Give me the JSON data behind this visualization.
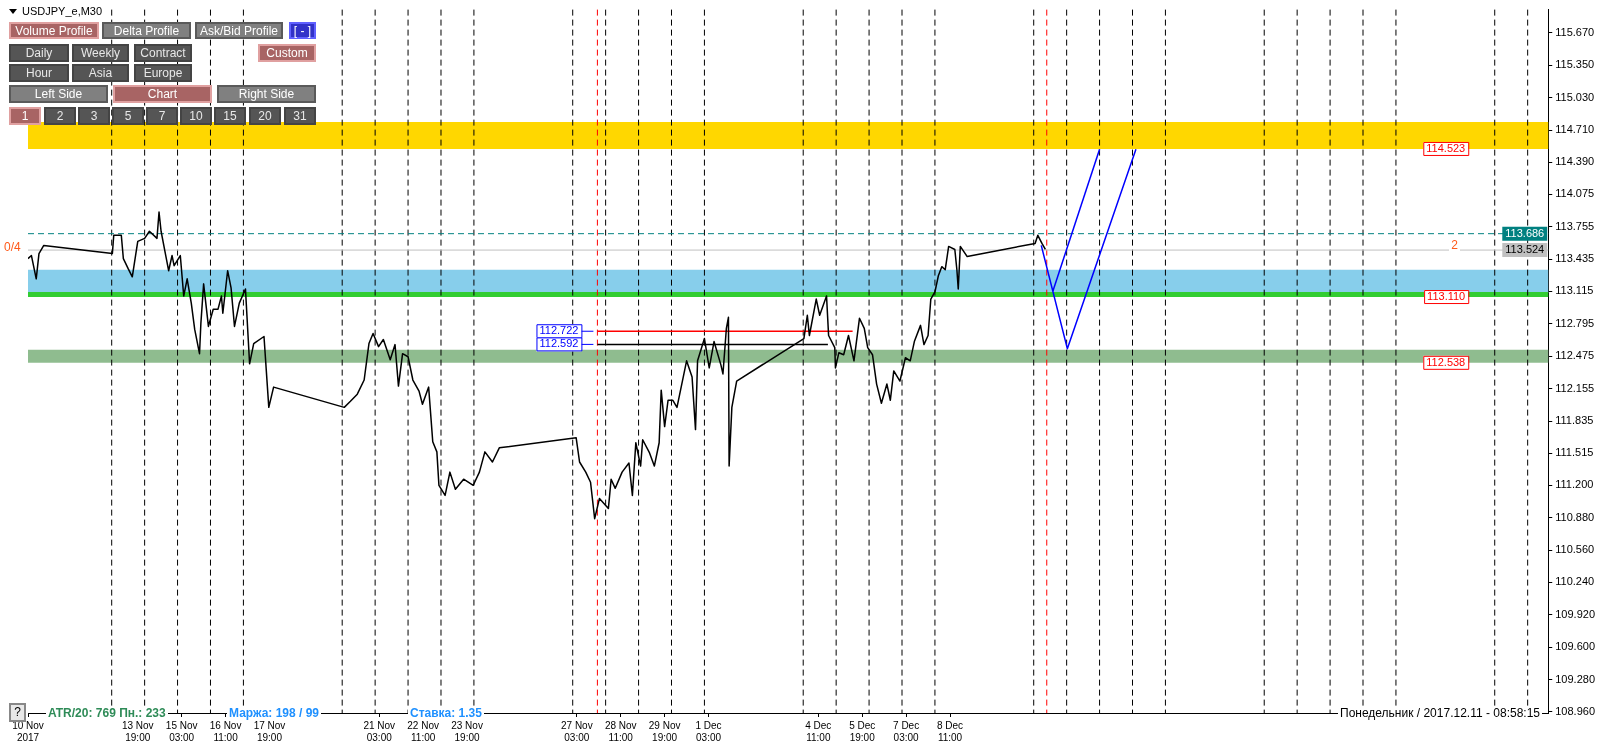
{
  "chart_data": {
    "type": "line",
    "title": "USDJPY_e,M30",
    "x": [
      "2017-11-10T11:00",
      "2017-11-10T13:30",
      "2017-11-10T17:00",
      "2017-11-10T19:00",
      "2017-11-10T22:30",
      "2017-11-13T00:30",
      "2017-11-13T01:30",
      "2017-11-13T07:00",
      "2017-11-13T08:30",
      "2017-11-13T12:00",
      "2017-11-13T15:00",
      "2017-11-13T19:00",
      "2017-11-14T00:00",
      "2017-11-14T03:30",
      "2017-11-14T09:00",
      "2017-11-14T10:30",
      "2017-11-14T12:00",
      "2017-11-14T17:30",
      "2017-11-14T20:00",
      "2017-11-14T21:30",
      "2017-11-15T02:00",
      "2017-11-15T04:30",
      "2017-11-15T07:00",
      "2017-11-15T10:00",
      "2017-11-15T12:30",
      "2017-11-15T16:00",
      "2017-11-15T17:00",
      "2017-11-15T19:00",
      "2017-11-15T22:30",
      "2017-11-16T02:00",
      "2017-11-16T05:30",
      "2017-11-16T08:00",
      "2017-11-16T09:00",
      "2017-11-16T12:30",
      "2017-11-16T15:00",
      "2017-11-16T17:30",
      "2017-11-16T21:00",
      "2017-11-17T01:30",
      "2017-11-17T04:30",
      "2017-11-17T07:30",
      "2017-11-17T15:00",
      "2017-11-17T18:30",
      "2017-11-17T22:00",
      "2017-11-20T01:30",
      "2017-11-20T06:00",
      "2017-11-20T11:00",
      "2017-11-20T16:00",
      "2017-11-20T19:30",
      "2017-11-20T22:30",
      "2017-11-21T02:30",
      "2017-11-21T06:00",
      "2017-11-21T11:00",
      "2017-11-21T14:30",
      "2017-11-21T17:00",
      "2017-11-21T20:00",
      "2017-11-22T00:00",
      "2017-11-22T03:30",
      "2017-11-22T08:00",
      "2017-11-22T10:30",
      "2017-11-22T15:00",
      "2017-11-22T18:00",
      "2017-11-22T21:00",
      "2017-11-22T22:30",
      "2017-11-23T03:00",
      "2017-11-23T06:30",
      "2017-11-23T10:30",
      "2017-11-23T16:30",
      "2017-11-23T23:30",
      "2017-11-24T04:00",
      "2017-11-24T08:00",
      "2017-11-24T13:30",
      "2017-11-24T18:30",
      "2017-11-27T02:30",
      "2017-11-27T05:00",
      "2017-11-27T09:30",
      "2017-11-27T13:00",
      "2017-11-27T16:00",
      "2017-11-27T19:30",
      "2017-11-28T02:00",
      "2017-11-28T04:00",
      "2017-11-28T07:00",
      "2017-11-28T12:00",
      "2017-11-28T17:00",
      "2017-11-28T19:30",
      "2017-11-28T22:00",
      "2017-11-29T01:30",
      "2017-11-29T03:00",
      "2017-11-29T08:00",
      "2017-11-29T11:30",
      "2017-11-29T15:00",
      "2017-11-29T16:30",
      "2017-11-29T19:00",
      "2017-11-29T21:30",
      "2017-11-30T01:00",
      "2017-11-30T04:00",
      "2017-11-30T11:00",
      "2017-11-30T15:00",
      "2017-11-30T17:30",
      "2017-11-30T19:00",
      "2017-12-01T00:00",
      "2017-12-01T03:30",
      "2017-12-01T07:00",
      "2017-12-01T12:00",
      "2017-12-01T13:30",
      "2017-12-01T16:00",
      "2017-12-01T17:30",
      "2017-12-01T18:00",
      "2017-12-01T20:00",
      "2017-12-01T23:30",
      "2017-12-04T00:30",
      "2017-12-04T03:00",
      "2017-12-04T04:30",
      "2017-12-04T09:30",
      "2017-12-04T12:00",
      "2017-12-04T17:00",
      "2017-12-04T18:30",
      "2017-12-04T23:00",
      "2017-12-04T23:30",
      "2017-12-05T02:00",
      "2017-12-05T05:30",
      "2017-12-05T09:00",
      "2017-12-05T13:00",
      "2017-12-05T17:00",
      "2017-12-05T20:30",
      "2017-12-05T23:00",
      "2017-12-06T02:30",
      "2017-12-06T05:30",
      "2017-12-06T09:00",
      "2017-12-06T13:00",
      "2017-12-06T15:30",
      "2017-12-06T18:00",
      "2017-12-06T22:30",
      "2017-12-07T02:30",
      "2017-12-07T06:00",
      "2017-12-07T09:00",
      "2017-12-07T13:30",
      "2017-12-07T16:00",
      "2017-12-07T19:00",
      "2017-12-07T21:00",
      "2017-12-08T00:00",
      "2017-12-08T02:30",
      "2017-12-08T05:00",
      "2017-12-08T07:30",
      "2017-12-08T10:00",
      "2017-12-08T14:30",
      "2017-12-08T16:00",
      "2017-12-08T17:00",
      "2017-12-08T18:30",
      "2017-12-08T23:30",
      "2017-12-11T01:00",
      "2017-12-11T03:00",
      "2017-12-11T06:00",
      "2017-12-11T08:30"
    ],
    "series": [
      {
        "color": "#000000",
        "values": [
          113.44,
          113.47,
          113.24,
          113.49,
          113.57,
          113.49,
          113.67,
          113.67,
          113.44,
          113.34,
          113.26,
          113.61,
          113.64,
          113.71,
          113.64,
          113.9,
          113.71,
          113.32,
          113.47,
          113.37,
          113.47,
          113.07,
          113.24,
          113.0,
          112.74,
          112.5,
          112.8,
          113.19,
          112.77,
          112.94,
          112.94,
          113.07,
          112.9,
          113.32,
          113.15,
          112.77,
          113.0,
          113.14,
          112.4,
          112.6,
          112.67,
          111.97,
          112.17,
          111.97,
          112.03,
          112.1,
          112.24,
          112.6,
          112.7,
          112.57,
          112.64,
          112.44,
          112.59,
          112.18,
          112.5,
          112.47,
          112.24,
          112.13,
          112.0,
          112.17,
          111.63,
          111.53,
          111.2,
          111.1,
          111.33,
          111.16,
          111.26,
          111.2,
          111.33,
          111.53,
          111.43,
          111.57,
          111.67,
          111.43,
          111.33,
          111.23,
          110.87,
          111.07,
          110.97,
          111.26,
          111.17,
          111.33,
          111.42,
          111.1,
          111.62,
          111.39,
          111.65,
          111.52,
          111.39,
          111.62,
          112.14,
          111.78,
          112.04,
          112.04,
          111.97,
          112.43,
          112.27,
          111.75,
          112.43,
          112.65,
          112.36,
          112.62,
          112.39,
          112.3,
          112.75,
          112.86,
          111.39,
          111.97,
          112.23,
          112.65,
          112.88,
          112.68,
          113.04,
          112.88,
          113.07,
          112.68,
          112.56,
          112.36,
          112.51,
          112.49,
          112.68,
          112.43,
          112.85,
          112.75,
          112.56,
          112.49,
          112.2,
          112.01,
          112.2,
          112.04,
          112.33,
          112.23,
          112.46,
          112.43,
          112.62,
          112.78,
          112.59,
          112.68,
          113.04,
          113.11,
          113.27,
          113.36,
          113.33,
          113.56,
          113.53,
          113.33,
          113.14,
          113.56,
          113.46,
          113.59,
          113.67,
          113.59,
          113.53
        ]
      },
      {
        "type": "line",
        "color": "#ff0000",
        "x": [
          "2017-11-27T18:00",
          "2017-12-05T12:00"
        ],
        "values": [
          112.722,
          112.722
        ],
        "value_labels": [
          "112.722",
          null
        ]
      },
      {
        "type": "line",
        "color": "#000000",
        "x": [
          "2017-11-27T18:00",
          "2017-12-04T18:00"
        ],
        "values": [
          112.592,
          112.592
        ],
        "value_labels": [
          "112.592",
          null
        ]
      },
      {
        "type": "line",
        "color": "#0000ff",
        "x": [
          "2017-12-11T05:30",
          "2017-12-12T00:30",
          "2017-12-14T02:30"
        ],
        "values": [
          113.57,
          112.55,
          114.52
        ]
      },
      {
        "type": "line",
        "color": "#0000ff",
        "x": [
          "2017-12-11T14:00",
          "2017-12-13T00:00"
        ],
        "values": [
          113.12,
          114.52
        ]
      }
    ],
    "bands": [
      {
        "axis": "y",
        "from": 114.523,
        "to": 114.79,
        "color": "#ffd700",
        "label": "114.523"
      },
      {
        "axis": "y",
        "from": 113.1,
        "to": 113.33,
        "color": "#87ceeb"
      },
      {
        "axis": "y",
        "from": 113.06,
        "to": 113.11,
        "color": "#32cd32",
        "label": "113.110"
      },
      {
        "axis": "y",
        "from": 112.41,
        "to": 112.538,
        "color": "#8fbc8f",
        "label": "112.538"
      }
    ],
    "xlim": [
      "2017-11-10T11:00",
      "2017-12-26T15:00"
    ],
    "xticks": [
      {
        "value": "2017-11-10T11:00",
        "label": "10 Nov 2017"
      },
      {
        "value": "2017-11-13T19:00",
        "label": "13 Nov 19:00"
      },
      {
        "value": "2017-11-15T03:00",
        "label": "15 Nov 03:00"
      },
      {
        "value": "2017-11-16T11:00",
        "label": "16 Nov 11:00"
      },
      {
        "value": "2017-11-17T19:00",
        "label": "17 Nov 19:00"
      },
      {
        "value": "2017-11-21T03:00",
        "label": "21 Nov 03:00"
      },
      {
        "value": "2017-11-22T11:00",
        "label": "22 Nov 11:00"
      },
      {
        "value": "2017-11-23T19:00",
        "label": "23 Nov 19:00"
      },
      {
        "value": "2017-11-27T03:00",
        "label": "27 Nov 03:00"
      },
      {
        "value": "2017-11-28T11:00",
        "label": "28 Nov 11:00"
      },
      {
        "value": "2017-11-29T19:00",
        "label": "29 Nov 19:00"
      },
      {
        "value": "2017-12-01T03:00",
        "label": "1 Dec 03:00"
      },
      {
        "value": "2017-12-04T11:00",
        "label": "4 Dec 11:00"
      },
      {
        "value": "2017-12-05T19:00",
        "label": "5 Dec 19:00"
      },
      {
        "value": "2017-12-07T03:00",
        "label": "7 Dec 03:00"
      },
      {
        "value": "2017-12-08T11:00",
        "label": "8 Dec 11:00"
      }
    ],
    "ylim": [
      108.95,
      115.9
    ],
    "yticks": [
      {
        "value": 115.67,
        "label": "115.670"
      },
      {
        "value": 115.35,
        "label": "115.350"
      },
      {
        "value": 115.03,
        "label": "115.030"
      },
      {
        "value": 114.71,
        "label": "114.710"
      },
      {
        "value": 114.39,
        "label": "114.390"
      },
      114.075,
      113.755,
      113.435,
      113.115,
      112.795,
      112.475,
      112.155,
      111.835,
      111.515,
      {
        "value": 111.2,
        "label": "111.200"
      },
      {
        "value": 110.88,
        "label": "110.880"
      },
      {
        "value": 110.56,
        "label": "110.560"
      },
      {
        "value": 110.24,
        "label": "110.240"
      },
      {
        "value": 109.92,
        "label": "109.920"
      },
      {
        "value": 109.6,
        "label": "109.600"
      },
      {
        "value": 109.28,
        "label": "109.280"
      },
      {
        "value": 108.96,
        "label": "108.960"
      }
    ],
    "grid": false,
    "legend": false,
    "ref_lines": [
      {
        "axis": "x",
        "value": "2017-11-13T00:00",
        "color": "#000000",
        "line_style": "dashed"
      },
      {
        "axis": "x",
        "value": "2017-11-14T00:00",
        "color": "#000000",
        "line_style": "dashed"
      },
      {
        "axis": "x",
        "value": "2017-11-15T00:00",
        "color": "#000000",
        "line_style": "dashed"
      },
      {
        "axis": "x",
        "value": "2017-11-16T00:00",
        "color": "#000000",
        "line_style": "dashed"
      },
      {
        "axis": "x",
        "value": "2017-11-17T00:00",
        "color": "#000000",
        "line_style": "dashed"
      },
      {
        "axis": "x",
        "value": "2017-11-20T00:00",
        "color": "#000000",
        "line_style": "dashed"
      },
      {
        "axis": "x",
        "value": "2017-11-21T00:00",
        "color": "#000000",
        "line_style": "dashed"
      },
      {
        "axis": "x",
        "value": "2017-11-22T00:00",
        "color": "#000000",
        "line_style": "dashed"
      },
      {
        "axis": "x",
        "value": "2017-11-23T00:00",
        "color": "#000000",
        "line_style": "dashed"
      },
      {
        "axis": "x",
        "value": "2017-11-24T00:00",
        "color": "#000000",
        "line_style": "dashed"
      },
      {
        "axis": "x",
        "value": "2017-11-27T00:00",
        "color": "#000000",
        "line_style": "dashed"
      },
      {
        "axis": "x",
        "value": "2017-11-28T00:00",
        "color": "#000000",
        "line_style": "dashed"
      },
      {
        "axis": "x",
        "value": "2017-11-29T00:00",
        "color": "#000000",
        "line_style": "dashed"
      },
      {
        "axis": "x",
        "value": "2017-11-30T00:00",
        "color": "#000000",
        "line_style": "dashed"
      },
      {
        "axis": "x",
        "value": "2017-12-01T00:00",
        "color": "#000000",
        "line_style": "dashed"
      },
      {
        "axis": "x",
        "value": "2017-12-04T00:00",
        "color": "#000000",
        "line_style": "dashed"
      },
      {
        "axis": "x",
        "value": "2017-12-05T00:00",
        "color": "#000000",
        "line_style": "dashed"
      },
      {
        "axis": "x",
        "value": "2017-12-06T00:00",
        "color": "#000000",
        "line_style": "dashed"
      },
      {
        "axis": "x",
        "value": "2017-12-07T00:00",
        "color": "#000000",
        "line_style": "dashed"
      },
      {
        "axis": "x",
        "value": "2017-12-08T00:00",
        "color": "#000000",
        "line_style": "dashed"
      },
      {
        "axis": "x",
        "value": "2017-12-11T00:00",
        "color": "#000000",
        "line_style": "dashed"
      },
      {
        "axis": "x",
        "value": "2017-12-12T00:00",
        "color": "#000000",
        "line_style": "dashed"
      },
      {
        "axis": "x",
        "value": "2017-12-13T00:00",
        "color": "#000000",
        "line_style": "dashed"
      },
      {
        "axis": "x",
        "value": "2017-12-14T00:00",
        "color": "#000000",
        "line_style": "dashed"
      },
      {
        "axis": "x",
        "value": "2017-12-15T00:00",
        "color": "#000000",
        "line_style": "dashed"
      },
      {
        "axis": "x",
        "value": "2017-12-18T00:00",
        "color": "#000000",
        "line_style": "dashed"
      },
      {
        "axis": "x",
        "value": "2017-12-19T00:00",
        "color": "#000000",
        "line_style": "dashed"
      },
      {
        "axis": "x",
        "value": "2017-12-20T00:00",
        "color": "#000000",
        "line_style": "dashed"
      },
      {
        "axis": "x",
        "value": "2017-12-21T00:00",
        "color": "#000000",
        "line_style": "dashed"
      },
      {
        "axis": "x",
        "value": "2017-12-22T00:00",
        "color": "#000000",
        "line_style": "dashed"
      },
      {
        "axis": "x",
        "value": "2017-12-25T00:00",
        "color": "#000000",
        "line_style": "dashed"
      },
      {
        "axis": "x",
        "value": "2017-12-26T00:00",
        "color": "#000000",
        "line_style": "dashed"
      },
      {
        "axis": "x",
        "value": "2017-11-27T18:00",
        "color": "#ff0000",
        "line_style": "dashed"
      },
      {
        "axis": "x",
        "value": "2017-12-11T09:30",
        "color": "#ff0000",
        "line_style": "dashed"
      },
      {
        "axis": "y",
        "value": 113.686,
        "label": "113.686",
        "color": "#008080",
        "line_style": "dashed"
      },
      {
        "axis": "y",
        "value": 113.524,
        "label": "113.524",
        "color": "#c0c0c0",
        "line_style": "solid"
      }
    ],
    "annotations": [
      "Volume Profile",
      "Delta Profile",
      "Ask/Bid Profile",
      "[ - ]",
      "Daily",
      "Weekly",
      "Contract",
      "Custom",
      "Hour",
      "Asia",
      "Europe",
      "Left Side",
      "Chart",
      "Right Side",
      "1",
      "2",
      "3",
      "5",
      "7",
      "10",
      "15",
      "20",
      "31",
      "?",
      "ATR/20: 769  Пн.: 233",
      "Маржа: 198 / 99",
      "Ставка: 1.35",
      "Понедельник / 2017.12.11 - 08:58:15",
      "0/4",
      "2"
    ]
  }
}
